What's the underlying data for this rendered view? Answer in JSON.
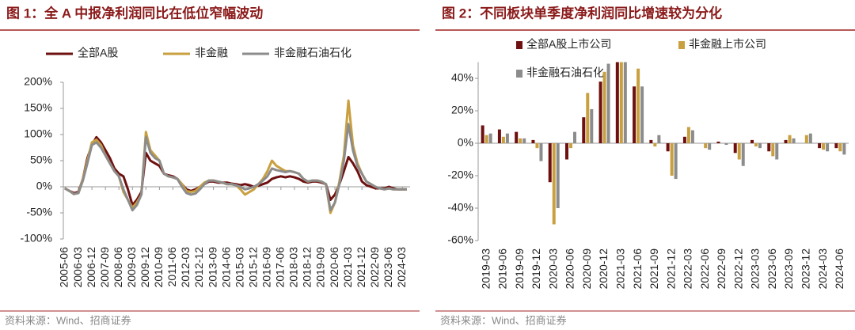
{
  "chart_data": [
    {
      "type": "line",
      "title": "图 1：全 A 中报净利润同比在低位窄幅波动",
      "source": "资料来源：Wind、招商证券",
      "categories": [
        "2005-06",
        null,
        null,
        "2006-03",
        null,
        null,
        "2006-12",
        null,
        null,
        "2007-09",
        null,
        null,
        "2008-06",
        null,
        null,
        "2009-03",
        null,
        null,
        "2009-12",
        null,
        null,
        "2010-09",
        null,
        null,
        "2011-06",
        null,
        null,
        "2012-03",
        null,
        null,
        "2012-12",
        null,
        null,
        "2013-09",
        null,
        null,
        "2014-06",
        null,
        null,
        "2015-03",
        null,
        null,
        "2015-12",
        null,
        null,
        "2016-09",
        null,
        null,
        "2017-06",
        null,
        null,
        "2018-03",
        null,
        null,
        "2018-12",
        null,
        null,
        "2019-09",
        null,
        null,
        "2020-06",
        null,
        null,
        "2021-03",
        null,
        null,
        "2021-12",
        null,
        null,
        "2022-09",
        null,
        null,
        "2023-06",
        null,
        null,
        "2024-03",
        null
      ],
      "series": [
        {
          "name": "全部A股",
          "color": "#6e1010",
          "values": [
            -3,
            -8,
            -12,
            -10,
            15,
            55,
            80,
            95,
            85,
            70,
            55,
            35,
            25,
            20,
            -5,
            -35,
            -25,
            -10,
            65,
            50,
            45,
            40,
            25,
            22,
            20,
            15,
            5,
            -5,
            -8,
            -5,
            0,
            5,
            10,
            10,
            8,
            8,
            8,
            6,
            5,
            3,
            5,
            3,
            0,
            2,
            5,
            8,
            15,
            18,
            20,
            18,
            20,
            18,
            15,
            10,
            8,
            10,
            10,
            8,
            5,
            -25,
            -15,
            5,
            30,
            57,
            45,
            30,
            10,
            3,
            0,
            -3,
            -3,
            -3,
            0,
            -3,
            -5,
            -5,
            -5
          ]
        },
        {
          "name": "非金融",
          "color": "#c9a040",
          "values": [
            -3,
            -8,
            -14,
            -12,
            15,
            50,
            85,
            90,
            80,
            60,
            45,
            30,
            20,
            -10,
            -25,
            -40,
            -30,
            -15,
            105,
            70,
            60,
            50,
            25,
            20,
            18,
            15,
            5,
            -8,
            -10,
            -8,
            0,
            8,
            12,
            12,
            10,
            8,
            5,
            5,
            3,
            -5,
            -15,
            -10,
            -5,
            5,
            15,
            30,
            50,
            40,
            35,
            30,
            30,
            28,
            25,
            15,
            10,
            12,
            12,
            10,
            5,
            -50,
            -30,
            10,
            60,
            165,
            80,
            45,
            25,
            10,
            5,
            0,
            -3,
            -5,
            -3,
            -5,
            -5,
            -5,
            -5
          ]
        },
        {
          "name": "非金融石油石化",
          "color": "#8c8c8c",
          "values": [
            -3,
            -8,
            -14,
            -12,
            12,
            45,
            80,
            85,
            75,
            60,
            45,
            30,
            20,
            -5,
            -25,
            -45,
            -35,
            -15,
            95,
            65,
            55,
            50,
            25,
            20,
            18,
            15,
            0,
            -12,
            -15,
            -13,
            -5,
            5,
            12,
            12,
            10,
            8,
            5,
            5,
            3,
            0,
            -5,
            -3,
            0,
            5,
            12,
            20,
            35,
            32,
            30,
            28,
            30,
            28,
            25,
            15,
            10,
            12,
            12,
            10,
            5,
            -45,
            -30,
            5,
            50,
            120,
            70,
            40,
            25,
            10,
            5,
            0,
            -3,
            -5,
            -3,
            -5,
            -5,
            -5,
            -5
          ]
        }
      ],
      "ylim": [
        -100,
        200
      ],
      "yticks": [
        {
          "value": -100,
          "label": "-100%"
        },
        {
          "value": -50,
          "label": "-50%"
        },
        {
          "value": 0,
          "label": "0%"
        },
        {
          "value": 50,
          "label": "50%"
        },
        {
          "value": 100,
          "label": "100%"
        },
        {
          "value": 150,
          "label": "150%"
        },
        {
          "value": 200,
          "label": "200%"
        }
      ],
      "legend": "top"
    },
    {
      "type": "bar",
      "title": "图 2：不同板块单季度净利润同比增速较为分化",
      "source": "资料来源：Wind、招商证券",
      "categories": [
        "2019-03",
        "2019-06",
        "2019-09",
        "2019-12",
        "2020-03",
        "2020-06",
        "2020-09",
        "2020-12",
        "2021-03",
        "2021-06",
        "2021-09",
        "2021-12",
        "2022-03",
        "2022-06",
        "2022-09",
        "2022-12",
        "2023-03",
        "2023-06",
        "2023-09",
        "2023-12",
        "2024-03",
        "2024-06"
      ],
      "series": [
        {
          "name": "全部A股上市公司",
          "color": "#6e1010",
          "values": [
            11,
            8.5,
            7,
            2,
            -24,
            -10,
            16,
            38,
            50,
            35,
            2,
            -5,
            4,
            0,
            1,
            -6,
            2,
            -5,
            2,
            0,
            -3,
            -3
          ]
        },
        {
          "name": "非金融上市公司",
          "color": "#c9a040",
          "values": [
            5,
            4,
            3,
            -3,
            -50,
            -3,
            31,
            44,
            50,
            46,
            -2,
            -20,
            10,
            -3,
            0,
            -10,
            -2,
            -8,
            5,
            5,
            -4,
            -5
          ]
        },
        {
          "name": "非金融石油石化",
          "color": "#8c8c8c",
          "values": [
            6,
            6,
            3,
            -11,
            -40,
            7,
            21,
            49,
            50,
            35,
            5,
            -22,
            8,
            -4,
            -1,
            -14,
            -3,
            -10,
            3,
            6,
            -5,
            -7
          ]
        }
      ],
      "ylim": [
        -60,
        50
      ],
      "yticks": [
        {
          "value": -60,
          "label": "-60%"
        },
        {
          "value": -40,
          "label": "-40%"
        },
        {
          "value": -20,
          "label": "-20%"
        },
        {
          "value": 0,
          "label": "0%"
        },
        {
          "value": 20,
          "label": "20%"
        },
        {
          "value": 40,
          "label": "40%"
        }
      ],
      "legend": "top-left"
    }
  ]
}
